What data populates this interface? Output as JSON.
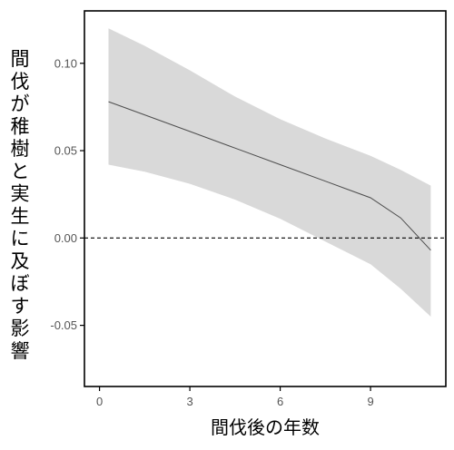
{
  "chart_data": {
    "type": "line",
    "title": "",
    "xlabel": "間伐後の年数",
    "ylabel": "間伐が稚樹と実生に及ぼす影響",
    "xlim": [
      -0.5,
      11.5
    ],
    "ylim": [
      -0.085,
      0.13
    ],
    "x_ticks": [
      0,
      3,
      6,
      9
    ],
    "x_tick_labels": [
      "0",
      "3",
      "6",
      "9"
    ],
    "y_ticks": [
      -0.05,
      0.0,
      0.05,
      0.1
    ],
    "y_tick_labels": [
      "-0.05",
      "0.00",
      "0.05",
      "0.10"
    ],
    "grid": false,
    "reference_line": {
      "y": 0.0,
      "style": "dashed"
    },
    "series": [
      {
        "x": [
          0.3,
          1.5,
          3,
          4.5,
          6,
          7.5,
          9,
          10,
          11
        ],
        "y": [
          0.078,
          0.0705,
          0.061,
          0.0515,
          0.042,
          0.0325,
          0.023,
          0.0115,
          -0.007
        ],
        "ci_upper": [
          0.12,
          0.11,
          0.096,
          0.081,
          0.068,
          0.057,
          0.047,
          0.039,
          0.03
        ],
        "ci_lower": [
          0.042,
          0.038,
          0.031,
          0.022,
          0.011,
          -0.002,
          -0.015,
          -0.029,
          -0.045
        ]
      }
    ],
    "colors": {
      "line": "#4d4d4d",
      "band": "#d9d9d9",
      "axis": "#000000",
      "ref": "#000000"
    }
  }
}
